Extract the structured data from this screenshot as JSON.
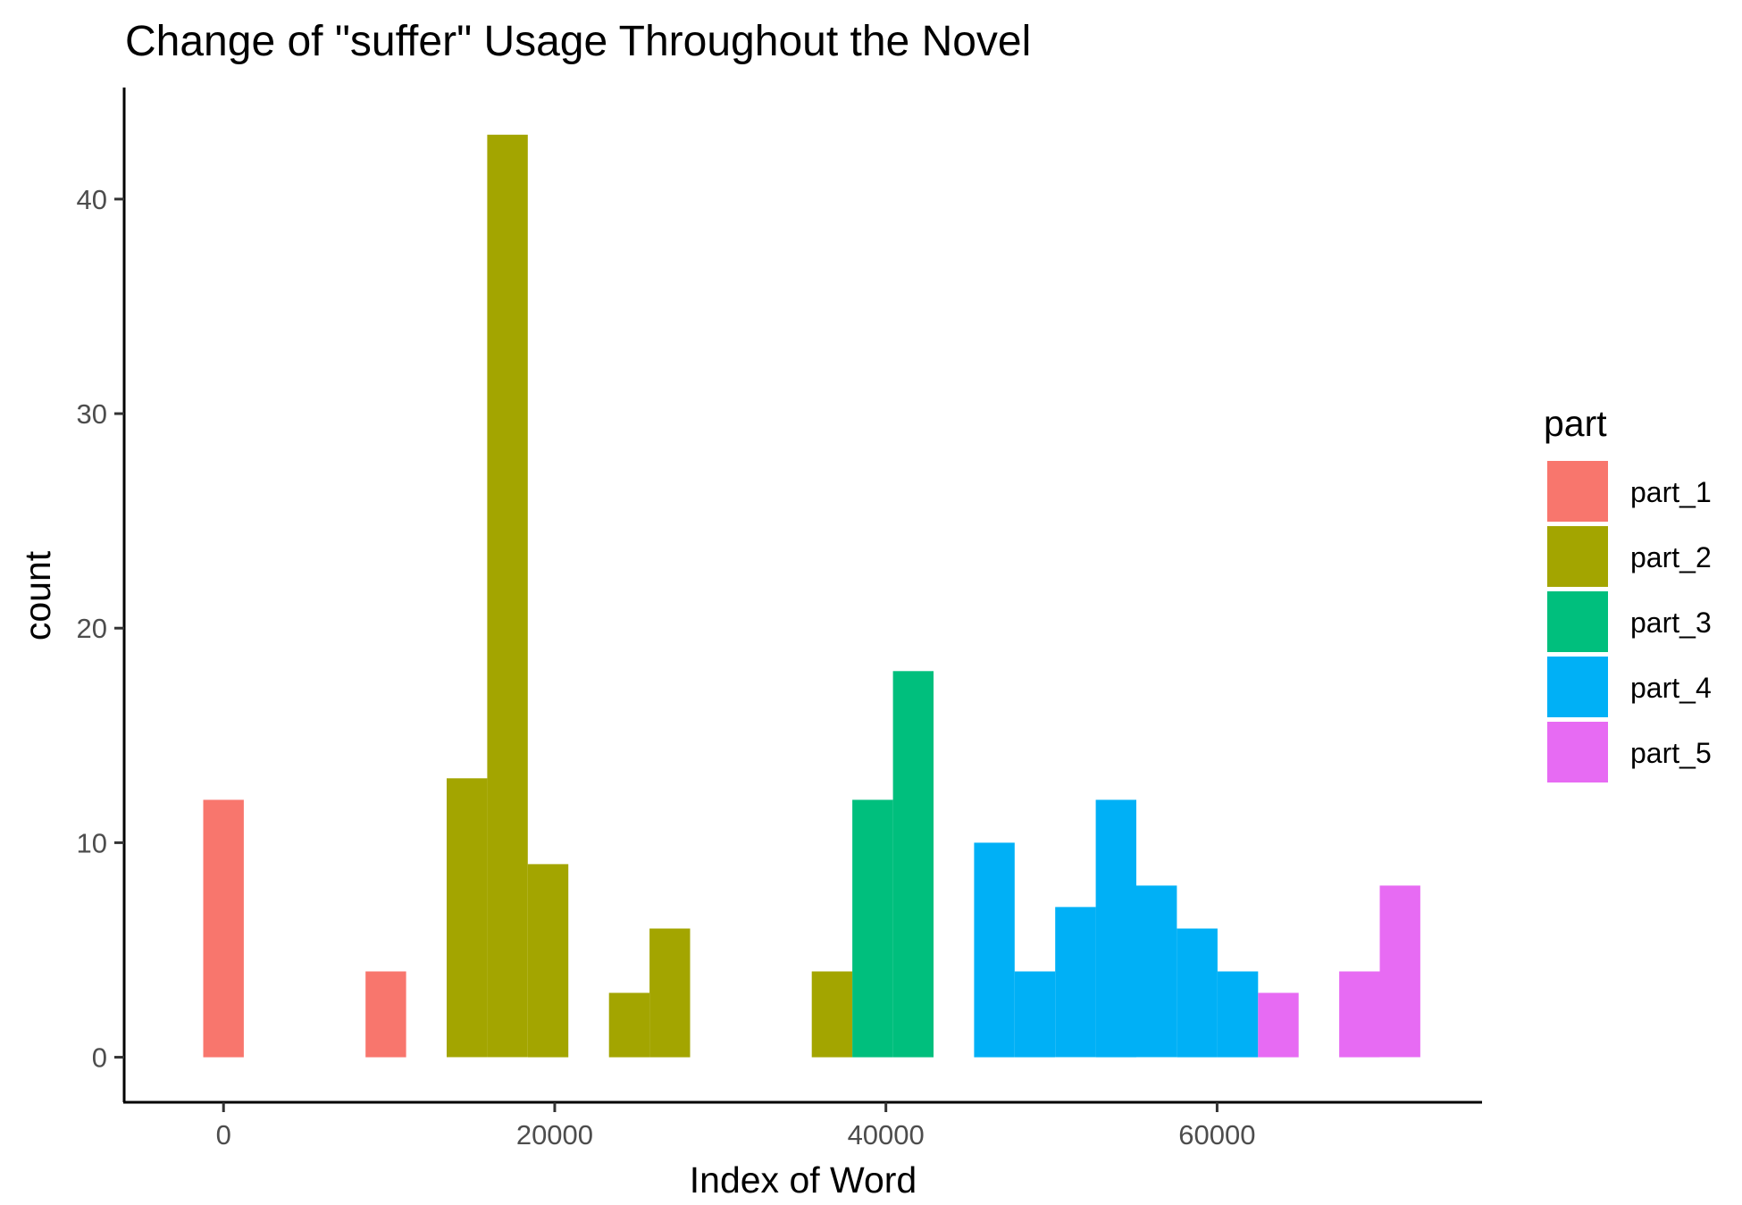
{
  "chart_data": {
    "type": "bar",
    "subtype": "histogram",
    "title": "Change of \"suffer\" Usage Throughout the Novel",
    "xlabel": "Index of Word",
    "ylabel": "count",
    "xlim": [
      -6000,
      76000
    ],
    "ylim": [
      -2.1,
      45.2
    ],
    "x_ticks": [
      0,
      20000,
      40000,
      60000
    ],
    "x_tick_labels": [
      "0",
      "20000",
      "40000",
      "60000"
    ],
    "y_ticks": [
      0,
      10,
      20,
      30,
      40
    ],
    "y_tick_labels": [
      "0",
      "10",
      "20",
      "30",
      "40"
    ],
    "grid": false,
    "bin_width": 2450,
    "legend": {
      "title": "part",
      "position": "right",
      "entries": [
        {
          "name": "part_1",
          "color": "#F8766D"
        },
        {
          "name": "part_2",
          "color": "#A3A500"
        },
        {
          "name": "part_3",
          "color": "#00BF7D"
        },
        {
          "name": "part_4",
          "color": "#00B0F6"
        },
        {
          "name": "part_5",
          "color": "#E76BF3"
        }
      ]
    },
    "series": [
      {
        "name": "part_1",
        "color": "#F8766D",
        "bins": [
          {
            "x": 0,
            "count": 12
          },
          {
            "x": 9800,
            "count": 4
          }
        ]
      },
      {
        "name": "part_2",
        "color": "#A3A500",
        "bins": [
          {
            "x": 14700,
            "count": 13
          },
          {
            "x": 17150,
            "count": 43
          },
          {
            "x": 19600,
            "count": 9
          },
          {
            "x": 24500,
            "count": 3
          },
          {
            "x": 26950,
            "count": 6
          },
          {
            "x": 36750,
            "count": 4
          }
        ]
      },
      {
        "name": "part_3",
        "color": "#00BF7D",
        "bins": [
          {
            "x": 39200,
            "count": 12
          },
          {
            "x": 41650,
            "count": 18
          }
        ]
      },
      {
        "name": "part_4",
        "color": "#00B0F6",
        "bins": [
          {
            "x": 46550,
            "count": 10
          },
          {
            "x": 49000,
            "count": 4
          },
          {
            "x": 51450,
            "count": 7
          },
          {
            "x": 53900,
            "count": 12
          },
          {
            "x": 56350,
            "count": 8
          },
          {
            "x": 58800,
            "count": 6
          },
          {
            "x": 61250,
            "count": 4
          }
        ]
      },
      {
        "name": "part_5",
        "color": "#E76BF3",
        "bins": [
          {
            "x": 63700,
            "count": 3
          },
          {
            "x": 68600,
            "count": 4
          },
          {
            "x": 71050,
            "count": 8
          }
        ]
      }
    ]
  }
}
